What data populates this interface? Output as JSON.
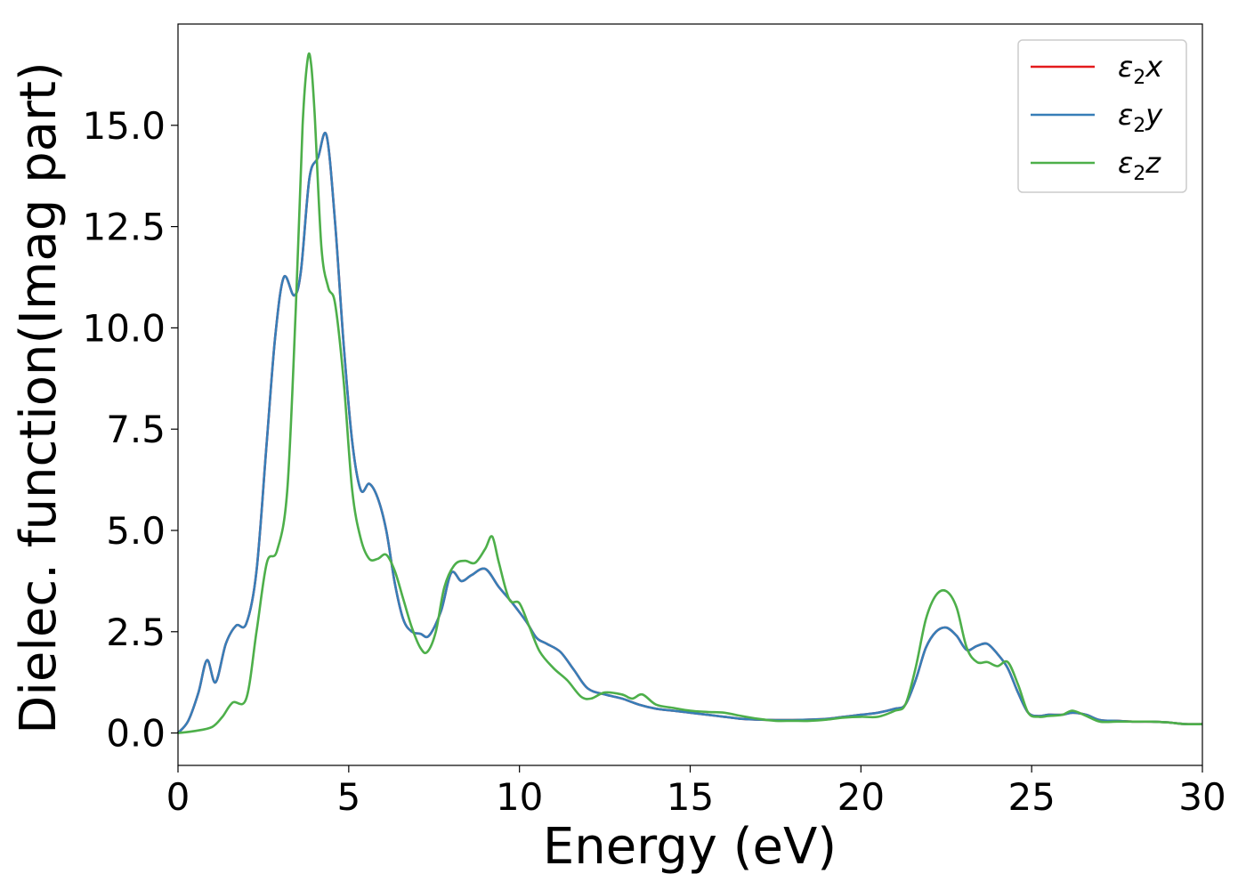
{
  "chart_data": {
    "type": "line",
    "title": "",
    "xlabel": "Energy (eV)",
    "ylabel": "Dielec. function(Imag part)",
    "xlim": [
      0,
      30
    ],
    "ylim": [
      -0.8,
      17.5
    ],
    "xticks": [
      0,
      5,
      10,
      15,
      20,
      25,
      30
    ],
    "xtick_labels": [
      "0",
      "5",
      "10",
      "15",
      "20",
      "25",
      "30"
    ],
    "yticks": [
      0.0,
      2.5,
      5.0,
      7.5,
      10.0,
      12.5,
      15.0
    ],
    "ytick_labels": [
      "0.0",
      "2.5",
      "5.0",
      "7.5",
      "10.0",
      "12.5",
      "15.0"
    ],
    "grid": false,
    "legend_position": "top-right",
    "series": [
      {
        "name": "ε2x",
        "legend_symbol": "ε",
        "legend_sub": "2",
        "legend_var": "x",
        "color": "#e41a1c",
        "x": [
          0,
          0.3,
          0.6,
          0.85,
          1.1,
          1.4,
          1.7,
          2.0,
          2.3,
          2.6,
          2.85,
          3.1,
          3.4,
          3.6,
          3.85,
          4.1,
          4.35,
          4.6,
          4.85,
          5.1,
          5.35,
          5.6,
          5.85,
          6.1,
          6.35,
          6.6,
          6.85,
          7.1,
          7.35,
          7.7,
          8.0,
          8.3,
          8.6,
          9.0,
          9.4,
          9.8,
          10.2,
          10.5,
          10.8,
          11.2,
          11.6,
          12.0,
          12.5,
          13.0,
          13.5,
          14.0,
          14.5,
          15.0,
          15.5,
          16.0,
          16.5,
          17.0,
          17.5,
          18.0,
          18.5,
          19.0,
          19.5,
          20.0,
          20.5,
          21.0,
          21.3,
          21.6,
          21.9,
          22.2,
          22.5,
          22.8,
          23.1,
          23.4,
          23.7,
          24.0,
          24.3,
          24.6,
          24.9,
          25.2,
          25.5,
          25.9,
          26.2,
          26.6,
          27.0,
          27.5,
          28.0,
          28.5,
          29.0,
          29.5,
          30.0
        ],
        "y": [
          0.0,
          0.3,
          1.0,
          1.8,
          1.25,
          2.2,
          2.65,
          2.7,
          4.0,
          7.2,
          9.8,
          11.25,
          10.8,
          11.4,
          13.7,
          14.2,
          14.75,
          12.6,
          9.6,
          7.2,
          6.0,
          6.15,
          5.8,
          5.0,
          3.7,
          2.8,
          2.5,
          2.45,
          2.4,
          3.0,
          3.95,
          3.75,
          3.9,
          4.05,
          3.6,
          3.2,
          2.75,
          2.35,
          2.2,
          2.0,
          1.55,
          1.1,
          0.95,
          0.85,
          0.7,
          0.6,
          0.55,
          0.5,
          0.45,
          0.4,
          0.35,
          0.33,
          0.32,
          0.32,
          0.33,
          0.35,
          0.4,
          0.45,
          0.5,
          0.6,
          0.7,
          1.3,
          2.1,
          2.5,
          2.6,
          2.4,
          2.05,
          2.15,
          2.2,
          1.95,
          1.6,
          1.0,
          0.5,
          0.42,
          0.45,
          0.45,
          0.5,
          0.45,
          0.32,
          0.3,
          0.28,
          0.28,
          0.26,
          0.22,
          0.22
        ]
      },
      {
        "name": "ε2y",
        "legend_symbol": "ε",
        "legend_sub": "2",
        "legend_var": "y",
        "color": "#377eb8",
        "x": [
          0,
          0.3,
          0.6,
          0.85,
          1.1,
          1.4,
          1.7,
          2.0,
          2.3,
          2.6,
          2.85,
          3.1,
          3.4,
          3.6,
          3.85,
          4.1,
          4.35,
          4.6,
          4.85,
          5.1,
          5.35,
          5.6,
          5.85,
          6.1,
          6.35,
          6.6,
          6.85,
          7.1,
          7.35,
          7.7,
          8.0,
          8.3,
          8.6,
          9.0,
          9.4,
          9.8,
          10.2,
          10.5,
          10.8,
          11.2,
          11.6,
          12.0,
          12.5,
          13.0,
          13.5,
          14.0,
          14.5,
          15.0,
          15.5,
          16.0,
          16.5,
          17.0,
          17.5,
          18.0,
          18.5,
          19.0,
          19.5,
          20.0,
          20.5,
          21.0,
          21.3,
          21.6,
          21.9,
          22.2,
          22.5,
          22.8,
          23.1,
          23.4,
          23.7,
          24.0,
          24.3,
          24.6,
          24.9,
          25.2,
          25.5,
          25.9,
          26.2,
          26.6,
          27.0,
          27.5,
          28.0,
          28.5,
          29.0,
          29.5,
          30.0
        ],
        "y": [
          0.0,
          0.3,
          1.0,
          1.8,
          1.25,
          2.2,
          2.65,
          2.7,
          4.0,
          7.2,
          9.8,
          11.25,
          10.8,
          11.4,
          13.7,
          14.2,
          14.75,
          12.6,
          9.6,
          7.2,
          6.0,
          6.15,
          5.8,
          5.0,
          3.7,
          2.8,
          2.5,
          2.45,
          2.4,
          3.0,
          3.95,
          3.75,
          3.9,
          4.05,
          3.6,
          3.2,
          2.75,
          2.35,
          2.2,
          2.0,
          1.55,
          1.1,
          0.95,
          0.85,
          0.7,
          0.6,
          0.55,
          0.5,
          0.45,
          0.4,
          0.35,
          0.33,
          0.32,
          0.32,
          0.33,
          0.35,
          0.4,
          0.45,
          0.5,
          0.6,
          0.7,
          1.3,
          2.1,
          2.5,
          2.6,
          2.4,
          2.05,
          2.15,
          2.2,
          1.95,
          1.6,
          1.0,
          0.5,
          0.42,
          0.45,
          0.45,
          0.5,
          0.45,
          0.32,
          0.3,
          0.28,
          0.28,
          0.26,
          0.22,
          0.22
        ]
      },
      {
        "name": "ε2z",
        "legend_symbol": "ε",
        "legend_sub": "2",
        "legend_var": "z",
        "color": "#4daf4a",
        "x": [
          0,
          0.5,
          1.0,
          1.3,
          1.6,
          2.0,
          2.3,
          2.6,
          2.9,
          3.2,
          3.45,
          3.65,
          3.8,
          3.9,
          4.0,
          4.2,
          4.4,
          4.6,
          4.85,
          5.1,
          5.35,
          5.6,
          5.85,
          6.1,
          6.35,
          6.6,
          6.85,
          7.1,
          7.3,
          7.55,
          7.8,
          8.1,
          8.4,
          8.7,
          9.0,
          9.2,
          9.4,
          9.7,
          10.0,
          10.3,
          10.6,
          11.0,
          11.4,
          11.8,
          12.1,
          12.5,
          13.0,
          13.3,
          13.6,
          14.0,
          14.5,
          15.0,
          15.5,
          16.0,
          16.5,
          17.0,
          17.5,
          18.0,
          18.5,
          19.0,
          19.5,
          20.0,
          20.5,
          21.0,
          21.3,
          21.6,
          21.9,
          22.2,
          22.5,
          22.8,
          23.1,
          23.4,
          23.7,
          24.0,
          24.3,
          24.6,
          24.9,
          25.2,
          25.5,
          25.9,
          26.2,
          26.6,
          27.0,
          27.5,
          28.0,
          28.5,
          29.0,
          29.5,
          30.0
        ],
        "y": [
          0.0,
          0.05,
          0.15,
          0.4,
          0.75,
          0.85,
          2.5,
          4.2,
          4.5,
          6.0,
          10.5,
          15.0,
          16.65,
          16.5,
          15.3,
          12.0,
          11.0,
          10.6,
          8.7,
          6.0,
          4.8,
          4.3,
          4.3,
          4.4,
          4.0,
          3.3,
          2.6,
          2.1,
          2.0,
          2.5,
          3.6,
          4.15,
          4.25,
          4.2,
          4.55,
          4.85,
          4.2,
          3.3,
          3.2,
          2.6,
          2.0,
          1.6,
          1.3,
          0.9,
          0.85,
          1.0,
          0.95,
          0.85,
          0.95,
          0.7,
          0.62,
          0.55,
          0.52,
          0.5,
          0.42,
          0.35,
          0.3,
          0.3,
          0.3,
          0.33,
          0.38,
          0.4,
          0.4,
          0.55,
          0.7,
          1.6,
          2.8,
          3.4,
          3.5,
          3.1,
          2.1,
          1.75,
          1.75,
          1.65,
          1.75,
          1.2,
          0.5,
          0.4,
          0.42,
          0.45,
          0.55,
          0.42,
          0.28,
          0.28,
          0.28,
          0.28,
          0.26,
          0.22,
          0.22
        ]
      }
    ]
  }
}
